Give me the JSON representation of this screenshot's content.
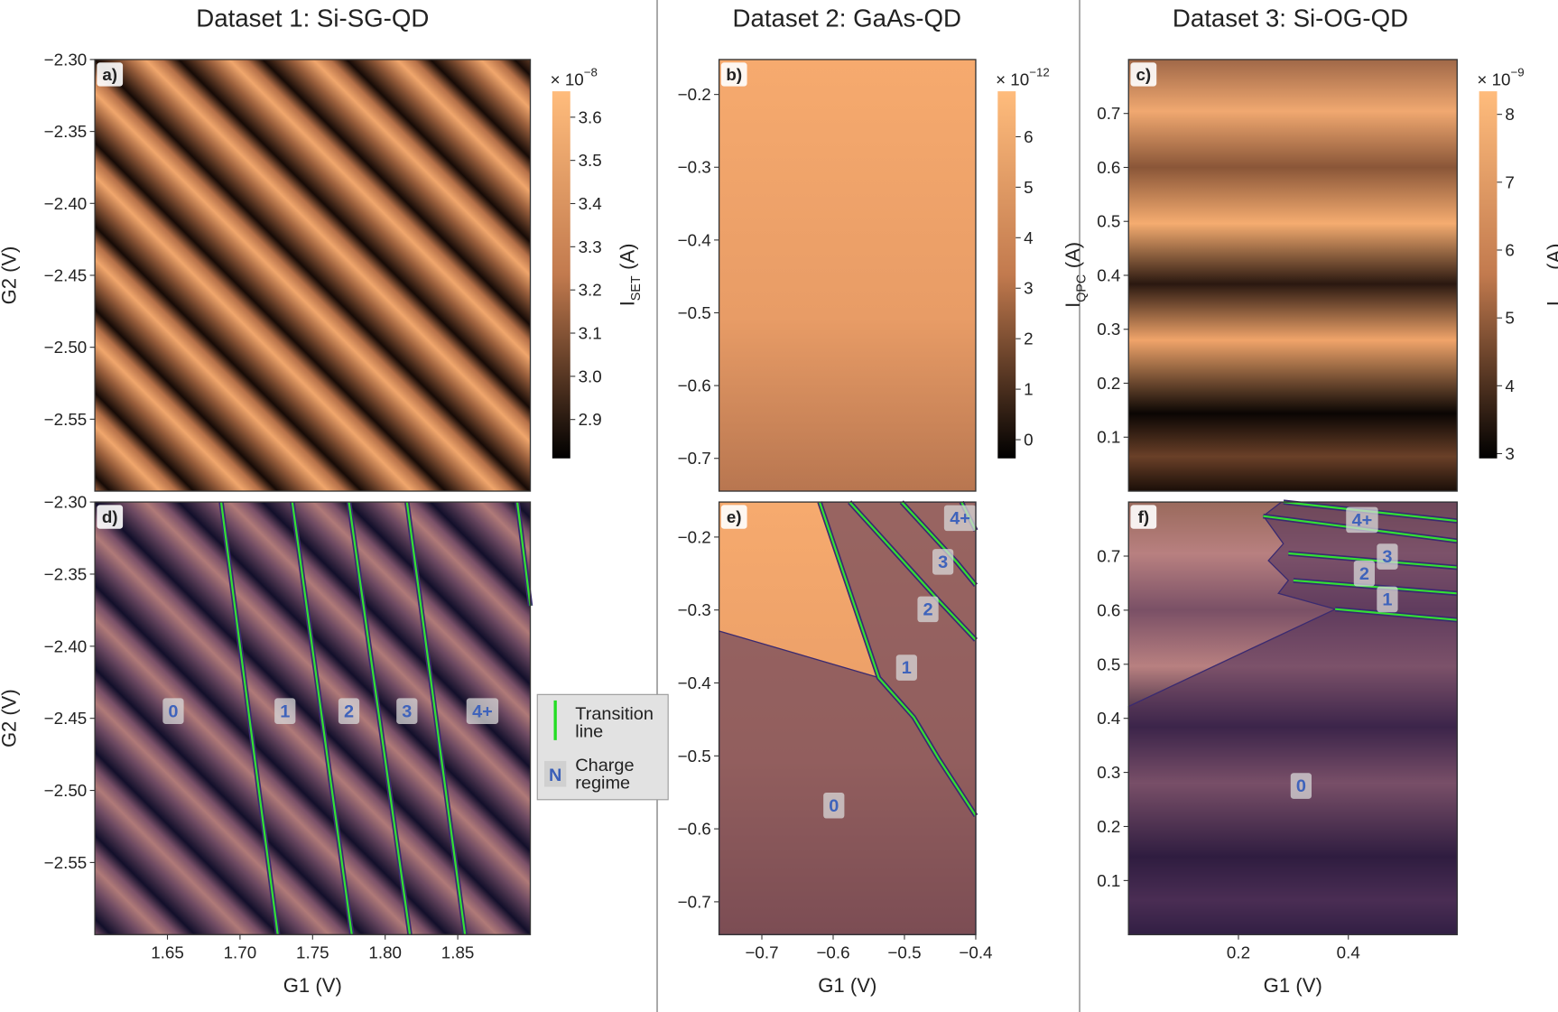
{
  "chart_data": [
    {
      "type": "heatmap",
      "title": "Dataset 1: Si-SG-QD",
      "panel_label": "a)",
      "ylabel": "G2 (V)",
      "ylim": [
        -2.6,
        -2.3
      ],
      "yticks": [
        {
          "value": -2.3,
          "label": "−2.30"
        },
        {
          "value": -2.35,
          "label": "−2.35"
        },
        {
          "value": -2.4,
          "label": "−2.40"
        },
        {
          "value": -2.45,
          "label": "−2.45"
        },
        {
          "value": -2.5,
          "label": "−2.50"
        },
        {
          "value": -2.55,
          "label": "−2.55"
        }
      ],
      "colorbar": {
        "label": "I",
        "label_sub": "SET",
        "label_unit": "(A)",
        "multiplier": "× 10",
        "exponent": "−8",
        "lim": [
          2.81,
          3.66
        ],
        "ticks": [
          2.9,
          {
            "value": 3,
            "label": "3.0"
          },
          3.1,
          3.2,
          3.3,
          3.4,
          3.5,
          3.6
        ]
      }
    },
    {
      "type": "heatmap",
      "title": "Dataset 2: GaAs-QD",
      "panel_label": "b)",
      "ylim": [
        -0.745,
        -0.152
      ],
      "yticks": [
        {
          "value": -0.2,
          "label": "−0.2"
        },
        {
          "value": -0.3,
          "label": "−0.3"
        },
        {
          "value": -0.4,
          "label": "−0.4"
        },
        {
          "value": -0.5,
          "label": "−0.5"
        },
        {
          "value": -0.6,
          "label": "−0.6"
        },
        {
          "value": -0.7,
          "label": "−0.7"
        }
      ],
      "colorbar": {
        "label": "I",
        "label_sub": "QPC",
        "label_unit": "(A)",
        "multiplier": "× 10",
        "exponent": "−12",
        "lim": [
          -0.37,
          6.9
        ],
        "ticks": [
          0,
          1,
          2,
          3,
          4,
          5,
          6
        ]
      }
    },
    {
      "type": "heatmap",
      "title": "Dataset 3: Si-OG-QD",
      "panel_label": "c)",
      "ylim": [
        0,
        0.8
      ],
      "yticks": [
        0.1,
        0.2,
        0.3,
        0.4,
        0.5,
        0.6,
        0.7
      ],
      "colorbar": {
        "label": "I",
        "label_sub": "SET",
        "label_unit": "(A)",
        "multiplier": "× 10",
        "exponent": "−9",
        "lim": [
          2.93,
          8.34
        ],
        "ticks": [
          3,
          4,
          5,
          6,
          7,
          8
        ]
      }
    },
    {
      "type": "heatmap",
      "panel_label": "d)",
      "ylabel": "G2 (V)",
      "xlabel": "G1 (V)",
      "xlim": [
        1.6,
        1.9
      ],
      "ylim": [
        -2.6,
        -2.3
      ],
      "xticks": [
        1.65,
        {
          "value": 1.7,
          "label": "1.70"
        },
        1.75,
        {
          "value": 1.8,
          "label": "1.80"
        },
        1.85
      ],
      "yticks": [
        {
          "value": -2.3,
          "label": "−2.30"
        },
        {
          "value": -2.35,
          "label": "−2.35"
        },
        {
          "value": -2.4,
          "label": "−2.40"
        },
        {
          "value": -2.45,
          "label": "−2.45"
        },
        {
          "value": -2.5,
          "label": "−2.50"
        },
        {
          "value": -2.55,
          "label": "−2.55"
        }
      ],
      "regions": [
        {
          "label": "0",
          "x": 1.654,
          "y": -2.445
        },
        {
          "label": "1",
          "x": 1.731,
          "y": -2.445
        },
        {
          "label": "2",
          "x": 1.775,
          "y": -2.445
        },
        {
          "label": "3",
          "x": 1.815,
          "y": -2.445
        },
        {
          "label": "4+",
          "x": 1.867,
          "y": -2.445
        }
      ],
      "transition_lines": [
        {
          "x": [
            1.687,
            1.726
          ],
          "y": [
            -2.3,
            -2.6
          ]
        },
        {
          "x": [
            1.736,
            1.777
          ],
          "y": [
            -2.3,
            -2.6
          ]
        },
        {
          "x": [
            1.775,
            1.817
          ],
          "y": [
            -2.3,
            -2.6
          ]
        },
        {
          "x": [
            1.815,
            1.855
          ],
          "y": [
            -2.3,
            -2.6
          ]
        },
        {
          "x": [
            1.891,
            1.9
          ],
          "y": [
            -2.3,
            -2.372
          ]
        }
      ]
    },
    {
      "type": "heatmap",
      "panel_label": "e)",
      "xlabel": "G1 (V)",
      "xlim": [
        -0.76,
        -0.4
      ],
      "ylim": [
        -0.745,
        -0.152
      ],
      "xticks": [
        {
          "value": -0.7,
          "label": "−0.7"
        },
        {
          "value": -0.6,
          "label": "−0.6"
        },
        {
          "value": -0.5,
          "label": "−0.5"
        },
        {
          "value": -0.4,
          "label": "−0.4"
        }
      ],
      "yticks": [
        {
          "value": -0.2,
          "label": "−0.2"
        },
        {
          "value": -0.3,
          "label": "−0.3"
        },
        {
          "value": -0.4,
          "label": "−0.4"
        },
        {
          "value": -0.5,
          "label": "−0.5"
        },
        {
          "value": -0.6,
          "label": "−0.6"
        },
        {
          "value": -0.7,
          "label": "−0.7"
        }
      ],
      "regions": [
        {
          "label": "0",
          "x": -0.599,
          "y": -0.568
        },
        {
          "label": "1",
          "x": -0.497,
          "y": -0.379
        },
        {
          "label": "2",
          "x": -0.467,
          "y": -0.299
        },
        {
          "label": "3",
          "x": -0.446,
          "y": -0.234
        },
        {
          "label": "4+",
          "x": -0.422,
          "y": -0.174
        }
      ],
      "transition_lines": [
        {
          "x": [
            -0.619,
            -0.536,
            -0.487,
            -0.452,
            -0.4
          ],
          "y": [
            -0.152,
            -0.393,
            -0.447,
            -0.504,
            -0.582
          ]
        },
        {
          "x": [
            -0.577,
            -0.452,
            -0.4
          ],
          "y": [
            -0.152,
            -0.287,
            -0.341
          ]
        },
        {
          "x": [
            -0.504,
            -0.427,
            -0.4
          ],
          "y": [
            -0.152,
            -0.234,
            -0.266
          ]
        },
        {
          "x": [
            -0.42,
            -0.4
          ],
          "y": [
            -0.152,
            -0.191
          ]
        }
      ]
    },
    {
      "type": "heatmap",
      "panel_label": "f)",
      "xlabel": "G1 (V)",
      "xlim": [
        0,
        0.598
      ],
      "ylim": [
        0,
        0.8
      ],
      "xticks": [
        0.2,
        0.4
      ],
      "yticks": [
        0.1,
        0.2,
        0.3,
        0.4,
        0.5,
        0.6,
        0.7
      ],
      "regions": [
        {
          "label": "0",
          "x": 0.314,
          "y": 0.275
        },
        {
          "label": "1",
          "x": 0.471,
          "y": 0.62
        },
        {
          "label": "2",
          "x": 0.429,
          "y": 0.668
        },
        {
          "label": "3",
          "x": 0.471,
          "y": 0.699
        },
        {
          "label": "4+",
          "x": 0.425,
          "y": 0.767
        }
      ],
      "transition_lines": [
        {
          "x": [
            0.376,
            0.598
          ],
          "y": [
            0.602,
            0.582
          ]
        },
        {
          "x": [
            0.3,
            0.598
          ],
          "y": [
            0.655,
            0.631
          ]
        },
        {
          "x": [
            0.291,
            0.598
          ],
          "y": [
            0.705,
            0.679
          ]
        },
        {
          "x": [
            0.245,
            0.598
          ],
          "y": [
            0.774,
            0.728
          ]
        },
        {
          "x": [
            0.282,
            0.598
          ],
          "y": [
            0.8,
            0.765
          ]
        }
      ]
    }
  ],
  "legend": {
    "line_label": [
      "Transition",
      "line"
    ],
    "regime_symbol": "N",
    "regime_label": [
      "Charge",
      "regime"
    ]
  }
}
